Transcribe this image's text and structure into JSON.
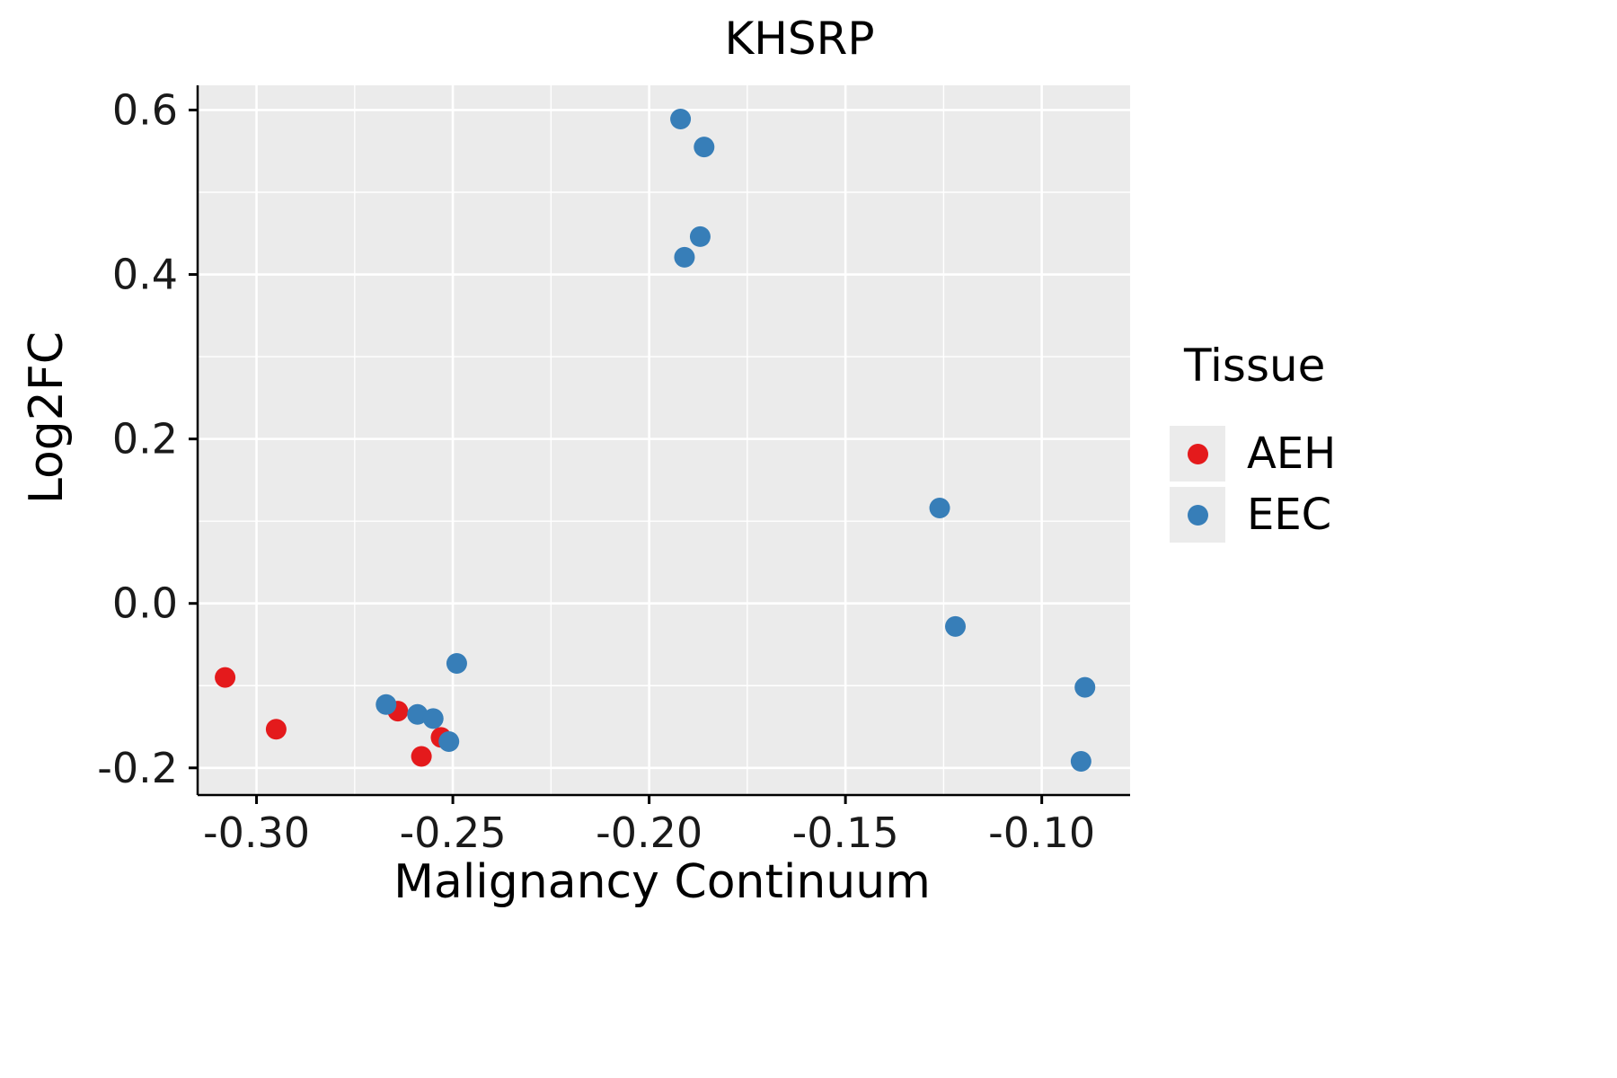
{
  "title": "KHSRP",
  "legend": {
    "title": "Tissue",
    "items": [
      {
        "label": "AEH",
        "color": "#E41A1C"
      },
      {
        "label": "EEC",
        "color": "#377EB8"
      }
    ]
  },
  "chart_data": {
    "type": "scatter",
    "title": "KHSRP",
    "xlabel": "Malignancy Continuum",
    "ylabel": "Log2FC",
    "xlim": [
      -0.315,
      -0.0775
    ],
    "ylim": [
      -0.233,
      0.63
    ],
    "x_ticks": [
      -0.3,
      -0.25,
      -0.2,
      -0.15,
      -0.1
    ],
    "x_tick_labels": [
      "-0.30",
      "-0.25",
      "-0.20",
      "-0.15",
      "-0.10"
    ],
    "y_ticks": [
      -0.2,
      0.0,
      0.2,
      0.4,
      0.6
    ],
    "y_tick_labels": [
      "-0.2",
      "0.0",
      "0.2",
      "0.4",
      "0.6"
    ],
    "grid": {
      "x_minor": [
        -0.275,
        -0.225,
        -0.175,
        -0.125
      ],
      "y_minor": [
        -0.1,
        0.1,
        0.3,
        0.5
      ]
    },
    "panel_bg": "#EBEBEB",
    "grid_color": "#FFFFFF",
    "legend_position": "right",
    "series": [
      {
        "name": "AEH",
        "color": "#E41A1C",
        "points": [
          [
            -0.308,
            -0.09
          ],
          [
            -0.295,
            -0.153
          ],
          [
            -0.264,
            -0.131
          ],
          [
            -0.258,
            -0.186
          ],
          [
            -0.253,
            -0.163
          ]
        ]
      },
      {
        "name": "EEC",
        "color": "#377EB8",
        "points": [
          [
            -0.192,
            0.589
          ],
          [
            -0.186,
            0.555
          ],
          [
            -0.187,
            0.446
          ],
          [
            -0.191,
            0.421
          ],
          [
            -0.267,
            -0.123
          ],
          [
            -0.259,
            -0.135
          ],
          [
            -0.255,
            -0.14
          ],
          [
            -0.251,
            -0.168
          ],
          [
            -0.249,
            -0.073
          ],
          [
            -0.126,
            0.116
          ],
          [
            -0.122,
            -0.028
          ],
          [
            -0.089,
            -0.102
          ],
          [
            -0.09,
            -0.192
          ]
        ]
      }
    ]
  }
}
